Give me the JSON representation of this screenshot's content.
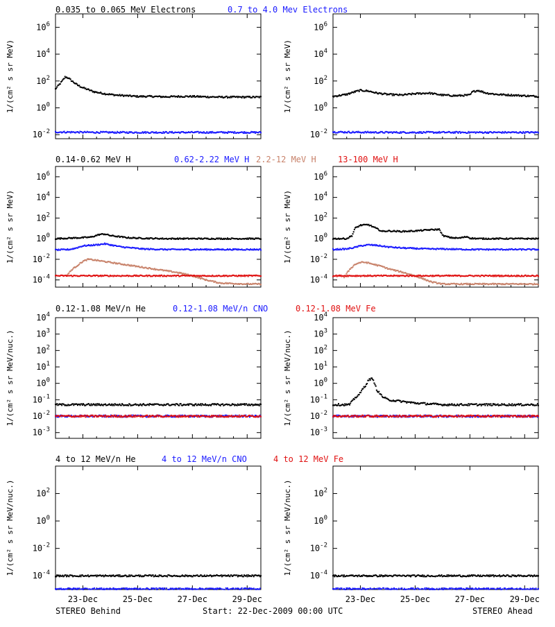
{
  "colors": {
    "black": "#000000",
    "blue": "#1a1aff",
    "tan": "#c8826a",
    "red": "#e01010",
    "axis": "#000000"
  },
  "footer": {
    "left": "STEREO Behind",
    "center": "Start: 22-Dec-2009 00:00 UTC",
    "right": "STEREO Ahead"
  },
  "x_ticks": [
    "23-Dec",
    "25-Dec",
    "27-Dec",
    "29-Dec"
  ],
  "rows": [
    {
      "ylabel": "1/(cm² s sr MeV)",
      "yticks": [
        {
          "b": "10",
          "e": "6"
        },
        {
          "b": "10",
          "e": "4"
        },
        {
          "b": "10",
          "e": "2"
        },
        {
          "b": "10",
          "e": "0"
        },
        {
          "b": "10",
          "e": "-2"
        }
      ],
      "legend": [
        {
          "text": "0.035 to 0.065 MeV Electrons",
          "color": "black"
        },
        {
          "text": "0.7 to 4.0 Mev Electrons",
          "color": "blue"
        }
      ]
    },
    {
      "ylabel": "1/(cm² s sr MeV)",
      "yticks": [
        {
          "b": "10",
          "e": "6"
        },
        {
          "b": "10",
          "e": "4"
        },
        {
          "b": "10",
          "e": "2"
        },
        {
          "b": "10",
          "e": "0"
        },
        {
          "b": "10",
          "e": "-2"
        },
        {
          "b": "10",
          "e": "-4"
        }
      ],
      "legend": [
        {
          "text": "0.14-0.62 MeV H",
          "color": "black"
        },
        {
          "text": "0.62-2.22 MeV H",
          "color": "blue"
        },
        {
          "text": "2.2-12 MeV H",
          "color": "tan"
        },
        {
          "text": "13-100 MeV H",
          "color": "red"
        }
      ]
    },
    {
      "ylabel": "1/(cm² s sr MeV/nuc.)",
      "yticks": [
        {
          "b": "10",
          "e": "4"
        },
        {
          "b": "10",
          "e": "3"
        },
        {
          "b": "10",
          "e": "2"
        },
        {
          "b": "10",
          "e": "1"
        },
        {
          "b": "10",
          "e": "0"
        },
        {
          "b": "10",
          "e": "-1"
        },
        {
          "b": "10",
          "e": "-2"
        },
        {
          "b": "10",
          "e": "-3"
        }
      ],
      "legend": [
        {
          "text": "0.12-1.08 MeV/n He",
          "color": "black"
        },
        {
          "text": "0.12-1.08 MeV/n CNO",
          "color": "blue"
        },
        {
          "text": "0.12-1.08 MeV Fe",
          "color": "red"
        }
      ]
    },
    {
      "ylabel": "1/(cm² s sr MeV/nuc.)",
      "yticks": [
        {
          "b": "10",
          "e": "2"
        },
        {
          "b": "10",
          "e": "0"
        },
        {
          "b": "10",
          "e": "-2"
        },
        {
          "b": "10",
          "e": "-4"
        }
      ],
      "legend": [
        {
          "text": "4 to 12 MeV/n He",
          "color": "black"
        },
        {
          "text": "4 to 12 MeV/n CNO",
          "color": "blue"
        },
        {
          "text": "4 to 12 MeV Fe",
          "color": "red"
        }
      ]
    }
  ],
  "chart_data": [
    {
      "type": "scatter",
      "spacecraft": "STEREO Behind",
      "x_unit": "days since 22-Dec-2009 00:00 UTC",
      "xlim": [
        0,
        7.5
      ],
      "ylim": [
        -2.3,
        7.0
      ],
      "log_y": true,
      "series": [
        {
          "name": "0.035 to 0.065 MeV Electrons",
          "color": "black",
          "x": [
            0.0,
            0.25,
            0.35,
            0.45,
            0.6,
            0.8,
            1.0,
            1.4,
            1.8,
            2.2,
            2.6,
            3.0,
            3.5,
            4.0,
            4.5,
            5.0,
            5.5,
            6.0,
            6.5,
            7.0,
            7.5
          ],
          "y": [
            1.4,
            2.0,
            2.3,
            2.25,
            2.0,
            1.7,
            1.5,
            1.2,
            1.05,
            0.95,
            0.9,
            0.85,
            0.85,
            0.82,
            0.85,
            0.85,
            0.82,
            0.8,
            0.8,
            0.8,
            0.8
          ]
        },
        {
          "name": "0.7 to 4.0 Mev Electrons",
          "color": "blue",
          "x": [
            0.0,
            1.0,
            2.0,
            3.0,
            4.0,
            5.0,
            6.0,
            7.0,
            7.5
          ],
          "y": [
            -1.8,
            -1.82,
            -1.83,
            -1.83,
            -1.83,
            -1.83,
            -1.83,
            -1.83,
            -1.83
          ]
        }
      ]
    },
    {
      "type": "scatter",
      "spacecraft": "STEREO Ahead",
      "x_unit": "days since 22-Dec-2009 00:00 UTC",
      "xlim": [
        0,
        7.5
      ],
      "ylim": [
        -2.3,
        7.0
      ],
      "log_y": true,
      "series": [
        {
          "name": "0.035 to 0.065 MeV Electrons",
          "color": "black",
          "x": [
            0.0,
            0.5,
            0.8,
            1.0,
            1.3,
            1.6,
            2.0,
            2.5,
            3.0,
            3.5,
            4.0,
            4.5,
            5.0,
            5.1,
            5.3,
            5.6,
            6.0,
            6.5,
            7.0,
            7.5
          ],
          "y": [
            0.85,
            1.0,
            1.2,
            1.3,
            1.25,
            1.1,
            1.0,
            0.95,
            1.05,
            1.1,
            0.95,
            0.9,
            0.95,
            1.2,
            1.3,
            1.1,
            1.0,
            0.95,
            0.9,
            0.85
          ]
        },
        {
          "name": "0.7 to 4.0 Mev Electrons",
          "color": "blue",
          "x": [
            0.0,
            1.0,
            2.0,
            3.0,
            4.0,
            5.0,
            6.0,
            7.0,
            7.5
          ],
          "y": [
            -1.8,
            -1.82,
            -1.83,
            -1.83,
            -1.83,
            -1.83,
            -1.83,
            -1.83,
            -1.83
          ]
        }
      ]
    },
    {
      "type": "scatter",
      "spacecraft": "STEREO Behind",
      "x_unit": "days since 22-Dec-2009 00:00 UTC",
      "xlim": [
        0,
        7.5
      ],
      "ylim": [
        -4.7,
        7.0
      ],
      "log_y": true,
      "series": [
        {
          "name": "0.14-0.62 MeV H",
          "color": "black",
          "x": [
            0.0,
            0.5,
            1.0,
            1.3,
            1.6,
            1.8,
            2.0,
            2.3,
            2.6,
            3.0,
            4.0,
            5.0,
            6.0,
            7.0,
            7.5
          ],
          "y": [
            0.0,
            0.05,
            0.1,
            0.15,
            0.4,
            0.45,
            0.3,
            0.2,
            0.1,
            0.05,
            0.0,
            0.0,
            0.0,
            0.0,
            0.0
          ]
        },
        {
          "name": "0.62-2.22 MeV H",
          "color": "blue",
          "x": [
            0.0,
            0.5,
            0.7,
            1.0,
            1.5,
            1.8,
            2.0,
            2.4,
            2.8,
            3.2,
            4.0,
            5.0,
            6.0,
            7.0,
            7.5
          ],
          "y": [
            -1.1,
            -1.05,
            -0.95,
            -0.7,
            -0.6,
            -0.5,
            -0.6,
            -0.8,
            -0.9,
            -1.0,
            -1.05,
            -1.05,
            -1.05,
            -1.05,
            -1.05
          ]
        },
        {
          "name": "2.2-12 MeV H",
          "color": "tan",
          "x": [
            0.4,
            0.6,
            0.8,
            1.0,
            1.2,
            1.5,
            2.0,
            2.5,
            3.0,
            3.5,
            4.0,
            4.5,
            5.0,
            5.5,
            6.0,
            7.0,
            7.5
          ],
          "y": [
            -3.6,
            -3.0,
            -2.6,
            -2.2,
            -2.0,
            -2.1,
            -2.3,
            -2.5,
            -2.7,
            -2.9,
            -3.1,
            -3.3,
            -3.6,
            -4.0,
            -4.3,
            -4.4,
            -4.4
          ]
        },
        {
          "name": "13-100 MeV H",
          "color": "red",
          "x": [
            0.0,
            1.0,
            2.0,
            3.0,
            4.0,
            5.0,
            6.0,
            7.0,
            7.5
          ],
          "y": [
            -3.6,
            -3.6,
            -3.6,
            -3.6,
            -3.6,
            -3.6,
            -3.6,
            -3.6,
            -3.6
          ]
        }
      ]
    },
    {
      "type": "scatter",
      "spacecraft": "STEREO Ahead",
      "x_unit": "days since 22-Dec-2009 00:00 UTC",
      "xlim": [
        0,
        7.5
      ],
      "ylim": [
        -4.7,
        7.0
      ],
      "log_y": true,
      "series": [
        {
          "name": "0.14-0.62 MeV H",
          "color": "black",
          "x": [
            0.0,
            0.5,
            0.7,
            0.8,
            1.0,
            1.3,
            1.5,
            1.8,
            2.0,
            2.5,
            3.0,
            3.5,
            3.9,
            4.0,
            4.3,
            4.6,
            4.9,
            5.0,
            5.3,
            6.0,
            7.0,
            7.5
          ],
          "y": [
            0.0,
            0.0,
            0.3,
            1.0,
            1.3,
            1.35,
            1.1,
            0.7,
            0.75,
            0.7,
            0.75,
            0.85,
            0.9,
            0.3,
            0.1,
            0.05,
            0.2,
            0.05,
            0.0,
            0.0,
            0.0,
            0.0
          ]
        },
        {
          "name": "0.62-2.22 MeV H",
          "color": "blue",
          "x": [
            0.0,
            0.5,
            0.8,
            1.0,
            1.3,
            1.6,
            2.0,
            2.5,
            3.0,
            3.5,
            4.0,
            5.0,
            6.0,
            7.0,
            7.5
          ],
          "y": [
            -1.05,
            -1.0,
            -0.85,
            -0.7,
            -0.6,
            -0.65,
            -0.8,
            -0.9,
            -0.95,
            -1.0,
            -1.0,
            -1.05,
            -1.05,
            -1.05,
            -1.05
          ]
        },
        {
          "name": "2.2-12 MeV H",
          "color": "tan",
          "x": [
            0.4,
            0.6,
            0.8,
            1.0,
            1.2,
            1.5,
            1.8,
            2.0,
            2.3,
            2.6,
            3.0,
            3.3,
            3.6,
            4.0,
            5.0,
            6.0,
            7.0,
            7.5
          ],
          "y": [
            -3.8,
            -3.0,
            -2.5,
            -2.3,
            -2.3,
            -2.5,
            -2.7,
            -2.9,
            -3.1,
            -3.3,
            -3.6,
            -3.9,
            -4.2,
            -4.4,
            -4.4,
            -4.4,
            -4.4,
            -4.4
          ]
        },
        {
          "name": "13-100 MeV H",
          "color": "red",
          "x": [
            0.0,
            1.0,
            2.0,
            3.0,
            4.0,
            5.0,
            6.0,
            7.0,
            7.5
          ],
          "y": [
            -3.6,
            -3.6,
            -3.6,
            -3.6,
            -3.6,
            -3.6,
            -3.6,
            -3.6,
            -3.6
          ]
        }
      ]
    },
    {
      "type": "scatter",
      "spacecraft": "STEREO Behind",
      "x_unit": "days since 22-Dec-2009 00:00 UTC",
      "xlim": [
        0,
        7.5
      ],
      "ylim": [
        -3.35,
        4.0
      ],
      "log_y": true,
      "series": [
        {
          "name": "0.12-1.08 MeV/n He",
          "color": "black",
          "x": [
            0.0,
            1.0,
            2.0,
            3.0,
            4.0,
            5.0,
            6.0,
            7.0,
            7.5
          ],
          "y": [
            -1.3,
            -1.3,
            -1.3,
            -1.3,
            -1.3,
            -1.3,
            -1.3,
            -1.3,
            -1.3
          ]
        },
        {
          "name": "0.12-1.08 MeV/n CNO",
          "color": "blue",
          "x": [
            0.0,
            1.0,
            2.0,
            3.0,
            4.0,
            5.0,
            6.0,
            7.0,
            7.5
          ],
          "y": [
            -2.0,
            -2.0,
            -2.0,
            -2.0,
            -2.0,
            -2.0,
            -2.0,
            -2.0,
            -2.0
          ]
        },
        {
          "name": "0.12-1.08 MeV Fe",
          "color": "red",
          "x": [
            0.0,
            1.0,
            2.0,
            3.0,
            4.0,
            5.0,
            6.0,
            7.0,
            7.5
          ],
          "y": [
            -2.0,
            -2.0,
            -2.0,
            -2.0,
            -2.0,
            -2.0,
            -2.0,
            -2.0,
            -2.0
          ]
        }
      ]
    },
    {
      "type": "scatter",
      "spacecraft": "STEREO Ahead",
      "x_unit": "days since 22-Dec-2009 00:00 UTC",
      "xlim": [
        0,
        7.5
      ],
      "ylim": [
        -3.35,
        4.0
      ],
      "log_y": true,
      "series": [
        {
          "name": "0.12-1.08 MeV/n He",
          "color": "black",
          "x": [
            0.0,
            0.6,
            0.8,
            1.0,
            1.1,
            1.2,
            1.3,
            1.4,
            1.5,
            1.6,
            1.8,
            2.0,
            2.5,
            3.0,
            3.5,
            4.0,
            5.0,
            6.0,
            7.0,
            7.5
          ],
          "y": [
            -1.3,
            -1.3,
            -0.9,
            -0.6,
            -0.3,
            -0.1,
            0.2,
            0.3,
            0.1,
            -0.4,
            -0.8,
            -1.0,
            -1.1,
            -1.2,
            -1.25,
            -1.3,
            -1.3,
            -1.3,
            -1.3,
            -1.3
          ]
        },
        {
          "name": "0.12-1.08 MeV/n CNO",
          "color": "blue",
          "x": [
            0.0,
            1.0,
            2.0,
            3.0,
            4.0,
            5.0,
            6.0,
            7.0,
            7.5
          ],
          "y": [
            -2.0,
            -2.0,
            -2.0,
            -2.0,
            -2.0,
            -2.0,
            -2.0,
            -2.0,
            -2.0
          ]
        },
        {
          "name": "0.12-1.08 MeV Fe",
          "color": "red",
          "x": [
            0.0,
            1.0,
            2.0,
            3.0,
            4.0,
            5.0,
            6.0,
            7.0,
            7.5
          ],
          "y": [
            -2.0,
            -2.0,
            -2.0,
            -2.0,
            -2.0,
            -2.0,
            -2.0,
            -2.0,
            -2.0
          ]
        }
      ]
    },
    {
      "type": "scatter",
      "spacecraft": "STEREO Behind",
      "x_unit": "days since 22-Dec-2009 00:00 UTC",
      "xlim": [
        0,
        7.5
      ],
      "ylim": [
        -5.0,
        4.0
      ],
      "log_y": true,
      "series": [
        {
          "name": "4 to 12 MeV/n He",
          "color": "black",
          "x": [
            0.0,
            1.0,
            2.0,
            3.0,
            4.0,
            5.0,
            6.0,
            7.0,
            7.5
          ],
          "y": [
            -4.0,
            -4.0,
            -4.0,
            -4.0,
            -4.0,
            -4.0,
            -4.0,
            -4.0,
            -4.0
          ]
        },
        {
          "name": "4 to 12 MeV/n CNO",
          "color": "blue",
          "x": [
            0.0,
            1.0,
            2.0,
            3.0,
            4.0,
            5.0,
            6.0,
            7.0,
            7.5
          ],
          "y": [
            -4.95,
            -4.95,
            -4.95,
            -4.95,
            -4.95,
            -4.95,
            -4.95,
            -4.95,
            -4.95
          ]
        }
      ]
    },
    {
      "type": "scatter",
      "spacecraft": "STEREO Ahead",
      "x_unit": "days since 22-Dec-2009 00:00 UTC",
      "xlim": [
        0,
        7.5
      ],
      "ylim": [
        -5.0,
        4.0
      ],
      "log_y": true,
      "series": [
        {
          "name": "4 to 12 MeV/n He",
          "color": "black",
          "x": [
            0.0,
            1.0,
            2.0,
            3.0,
            4.0,
            5.0,
            6.0,
            7.0,
            7.5
          ],
          "y": [
            -4.0,
            -4.0,
            -4.0,
            -4.0,
            -4.0,
            -4.0,
            -4.0,
            -4.0,
            -4.0
          ]
        },
        {
          "name": "4 to 12 MeV/n CNO",
          "color": "blue",
          "x": [
            0.0,
            1.0,
            2.0,
            3.0,
            4.0,
            5.0,
            6.0,
            7.0,
            7.5
          ],
          "y": [
            -4.95,
            -4.95,
            -4.95,
            -4.95,
            -4.95,
            -4.95,
            -4.95,
            -4.95,
            -4.95
          ]
        }
      ]
    }
  ]
}
